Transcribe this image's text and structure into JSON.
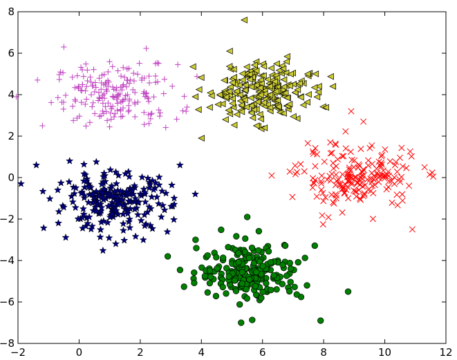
{
  "chart_data": {
    "type": "scatter",
    "title": "",
    "xlabel": "",
    "ylabel": "",
    "xlim": [
      -2,
      12
    ],
    "ylim": [
      -8,
      8
    ],
    "grid": false,
    "legend": "none",
    "xticks": [
      -2,
      0,
      2,
      4,
      6,
      8,
      10,
      12
    ],
    "yticks": [
      -8,
      -6,
      -4,
      -2,
      0,
      2,
      4,
      6,
      8
    ],
    "series": [
      {
        "marker": "plus",
        "color": "#bf40bf",
        "center": [
          1.2,
          4.0
        ],
        "spread": [
          1.0,
          0.75
        ],
        "count": 190,
        "points": [
          [
            -0.5,
            6.3
          ],
          [
            2.5,
            5.5
          ],
          [
            -1.2,
            2.5
          ],
          [
            2.5,
            4.9
          ],
          [
            3.5,
            3.2
          ]
        ]
      },
      {
        "marker": "triangle-left",
        "color": "#cccc33",
        "center": [
          5.9,
          4.2
        ],
        "spread": [
          0.8,
          0.7
        ],
        "count": 230,
        "points": [
          [
            5.4,
            7.6
          ],
          [
            4.0,
            1.9
          ],
          [
            8.3,
            4.4
          ],
          [
            5.8,
            2.5
          ],
          [
            3.8,
            3.9
          ]
        ]
      },
      {
        "marker": "x",
        "color": "#ff0000",
        "center": [
          9.1,
          0.0
        ],
        "spread": [
          0.95,
          0.75
        ],
        "count": 190,
        "points": [
          [
            6.3,
            0.1
          ],
          [
            11.3,
            0.5
          ],
          [
            9.3,
            2.7
          ],
          [
            10.9,
            -2.5
          ],
          [
            8.9,
            3.2
          ]
        ]
      },
      {
        "marker": "star",
        "color": "#00007f",
        "center": [
          1.1,
          -1.2
        ],
        "spread": [
          0.95,
          0.7
        ],
        "count": 230,
        "points": [
          [
            -1.9,
            -0.3
          ],
          [
            3.8,
            -0.8
          ],
          [
            1.2,
            -3.2
          ],
          [
            3.3,
            0.6
          ],
          [
            -1.4,
            0.6
          ]
        ]
      },
      {
        "marker": "circle",
        "color": "#007f00",
        "center": [
          5.6,
          -4.5
        ],
        "spread": [
          0.85,
          0.7
        ],
        "count": 210,
        "points": [
          [
            5.5,
            -1.9
          ],
          [
            2.9,
            -3.8
          ],
          [
            7.9,
            -6.9
          ],
          [
            8.8,
            -5.5
          ],
          [
            5.3,
            -7.0
          ]
        ]
      }
    ]
  }
}
